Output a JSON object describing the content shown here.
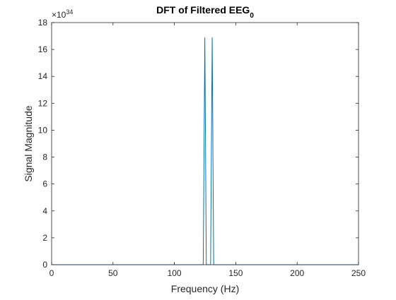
{
  "chart_data": {
    "type": "line",
    "title": "DFT of Filtered EEG",
    "title_subscript": "0",
    "xlabel": "Frequency (Hz)",
    "ylabel": "Signal Magnitude",
    "xlim": [
      0,
      250
    ],
    "ylim": [
      0,
      18
    ],
    "y_exponent_prefix": "×10",
    "y_exponent_power": "34",
    "grid": false,
    "legend": "none",
    "box": true,
    "x_ticks": [
      {
        "value": 0,
        "label": "0"
      },
      {
        "value": 50,
        "label": "50"
      },
      {
        "value": 100,
        "label": "100"
      },
      {
        "value": 150,
        "label": "150"
      },
      {
        "value": 200,
        "label": "200"
      },
      {
        "value": 250,
        "label": "250"
      }
    ],
    "y_ticks": [
      {
        "value": 0,
        "label": "0"
      },
      {
        "value": 2,
        "label": "2"
      },
      {
        "value": 4,
        "label": "4"
      },
      {
        "value": 6,
        "label": "6"
      },
      {
        "value": 8,
        "label": "8"
      },
      {
        "value": 10,
        "label": "10"
      },
      {
        "value": 12,
        "label": "12"
      },
      {
        "value": 14,
        "label": "14"
      },
      {
        "value": 16,
        "label": "16"
      },
      {
        "value": 18,
        "label": "18"
      }
    ],
    "series": [
      {
        "color": "#0072bd",
        "x": [
          0,
          123.5,
          124.8,
          126.0,
          129.5,
          130.8,
          132.0,
          250
        ],
        "y": [
          0,
          0,
          16.9,
          0,
          0,
          16.9,
          0,
          0
        ]
      }
    ]
  }
}
